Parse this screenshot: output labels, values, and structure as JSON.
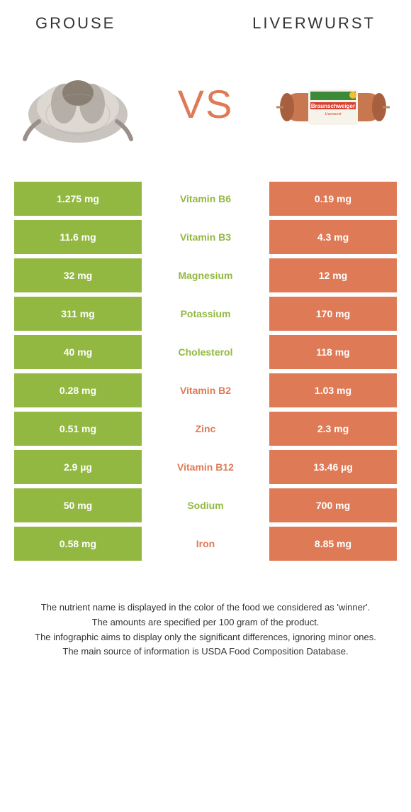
{
  "header": {
    "left": "GROUSE",
    "right": "LIVERWURST",
    "vs": "VS"
  },
  "colors": {
    "grouse": "#93b842",
    "liverwurst": "#df7a56",
    "grouse_text": "#93b842",
    "liverwurst_text": "#df7a56",
    "bg": "#ffffff",
    "footnote": "#333333"
  },
  "rows": [
    {
      "left": "1.275 mg",
      "name": "Vitamin B6",
      "right": "0.19 mg",
      "winner": "grouse"
    },
    {
      "left": "11.6 mg",
      "name": "Vitamin B3",
      "right": "4.3 mg",
      "winner": "grouse"
    },
    {
      "left": "32 mg",
      "name": "Magnesium",
      "right": "12 mg",
      "winner": "grouse"
    },
    {
      "left": "311 mg",
      "name": "Potassium",
      "right": "170 mg",
      "winner": "grouse"
    },
    {
      "left": "40 mg",
      "name": "Cholesterol",
      "right": "118 mg",
      "winner": "grouse"
    },
    {
      "left": "0.28 mg",
      "name": "Vitamin B2",
      "right": "1.03 mg",
      "winner": "liverwurst"
    },
    {
      "left": "0.51 mg",
      "name": "Zinc",
      "right": "2.3 mg",
      "winner": "liverwurst"
    },
    {
      "left": "2.9 µg",
      "name": "Vitamin B12",
      "right": "13.46 µg",
      "winner": "liverwurst"
    },
    {
      "left": "50 mg",
      "name": "Sodium",
      "right": "700 mg",
      "winner": "grouse"
    },
    {
      "left": "0.58 mg",
      "name": "Iron",
      "right": "8.85 mg",
      "winner": "liverwurst"
    }
  ],
  "footnotes": [
    "The nutrient name is displayed in the color of the food we considered as 'winner'.",
    "The amounts are specified per 100 gram of the product.",
    "The infographic aims to display only the significant differences, ignoring minor ones.",
    "The main source of information is USDA Food Composition Database."
  ]
}
